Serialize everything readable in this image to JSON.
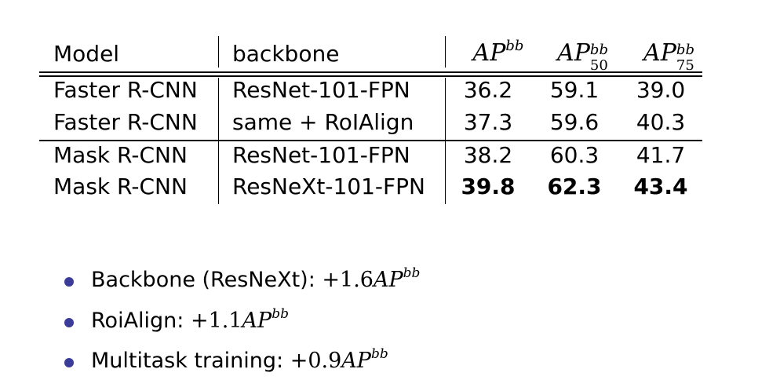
{
  "table": {
    "headers": {
      "model": "Model",
      "backbone": "backbone",
      "ap": {
        "base": "AP",
        "sup": "bb"
      },
      "ap50": {
        "base": "AP",
        "sup": "bb",
        "sub": "50"
      },
      "ap75": {
        "base": "AP",
        "sup": "bb",
        "sub": "75"
      }
    },
    "rows": [
      {
        "model": "Faster R-CNN",
        "backbone": "ResNet-101-FPN",
        "ap": "36.2",
        "ap50": "59.1",
        "ap75": "39.0",
        "bold": false
      },
      {
        "model": "Faster R-CNN",
        "backbone": "same + RoIAlign",
        "ap": "37.3",
        "ap50": "59.6",
        "ap75": "40.3",
        "bold": false
      },
      {
        "model": "Mask R-CNN",
        "backbone": "ResNet-101-FPN",
        "ap": "38.2",
        "ap50": "60.3",
        "ap75": "41.7",
        "bold": false
      },
      {
        "model": "Mask R-CNN",
        "backbone": "ResNeXt-101-FPN",
        "ap": "39.8",
        "ap50": "62.3",
        "ap75": "43.4",
        "bold": true
      }
    ]
  },
  "bullets": [
    {
      "label": "Backbone (ResNeXt):",
      "value": "+1.6",
      "metric": "AP",
      "sup": "bb"
    },
    {
      "label": "RoiAlign:",
      "value": "+1.1",
      "metric": "AP",
      "sup": "bb"
    },
    {
      "label": "Multitask training:",
      "value": "+0.9",
      "metric": "AP",
      "sup": "bb"
    }
  ],
  "colors": {
    "bullet": "#3b3b9a",
    "text": "#000000",
    "background": "#ffffff"
  }
}
